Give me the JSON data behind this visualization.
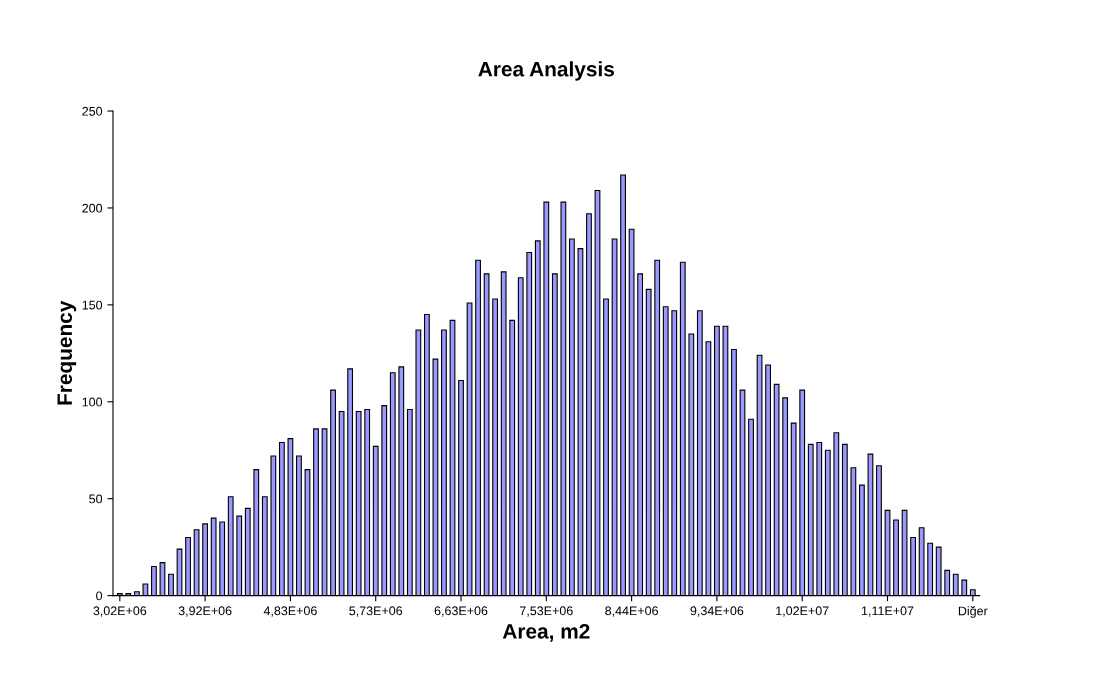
{
  "chart_data": {
    "type": "bar",
    "title": "Area Analysis",
    "xlabel": "Area, m2",
    "ylabel": "Frequency",
    "categories": [
      "3,02E+06",
      null,
      null,
      null,
      null,
      null,
      null,
      null,
      null,
      null,
      "3,92E+06",
      null,
      null,
      null,
      null,
      null,
      null,
      null,
      null,
      null,
      "4,83E+06",
      null,
      null,
      null,
      null,
      null,
      null,
      null,
      null,
      null,
      "5,73E+06",
      null,
      null,
      null,
      null,
      null,
      null,
      null,
      null,
      null,
      "6,63E+06",
      null,
      null,
      null,
      null,
      null,
      null,
      null,
      null,
      null,
      "7,53E+06",
      null,
      null,
      null,
      null,
      null,
      null,
      null,
      null,
      null,
      "8,44E+06",
      null,
      null,
      null,
      null,
      null,
      null,
      null,
      null,
      null,
      "9,34E+06",
      null,
      null,
      null,
      null,
      null,
      null,
      null,
      null,
      null,
      "1,02E+07",
      null,
      null,
      null,
      null,
      null,
      null,
      null,
      null,
      null,
      "1,11E+07",
      null,
      null,
      null,
      null,
      null,
      null,
      null,
      null,
      null,
      "Diğer"
    ],
    "values": [
      1,
      1,
      2,
      6,
      15,
      17,
      11,
      24,
      30,
      34,
      37,
      40,
      38,
      51,
      41,
      45,
      65,
      51,
      72,
      79,
      81,
      72,
      65,
      86,
      86,
      106,
      95,
      117,
      95,
      96,
      77,
      98,
      115,
      118,
      96,
      137,
      145,
      122,
      137,
      142,
      111,
      151,
      173,
      166,
      153,
      167,
      142,
      164,
      177,
      183,
      203,
      166,
      203,
      184,
      179,
      197,
      209,
      153,
      184,
      217,
      189,
      166,
      158,
      173,
      149,
      147,
      172,
      135,
      147,
      131,
      139,
      139,
      127,
      106,
      91,
      124,
      119,
      109,
      102,
      89,
      106,
      78,
      79,
      75,
      84,
      78,
      66,
      57,
      73,
      67,
      44,
      39,
      44,
      30,
      35,
      27,
      25,
      13,
      11,
      8,
      3
    ],
    "color": "#9999ff",
    "ylim": [
      0,
      250
    ],
    "yticks": [
      0,
      50,
      100,
      150,
      200,
      250
    ],
    "grid": false,
    "legend": false
  }
}
